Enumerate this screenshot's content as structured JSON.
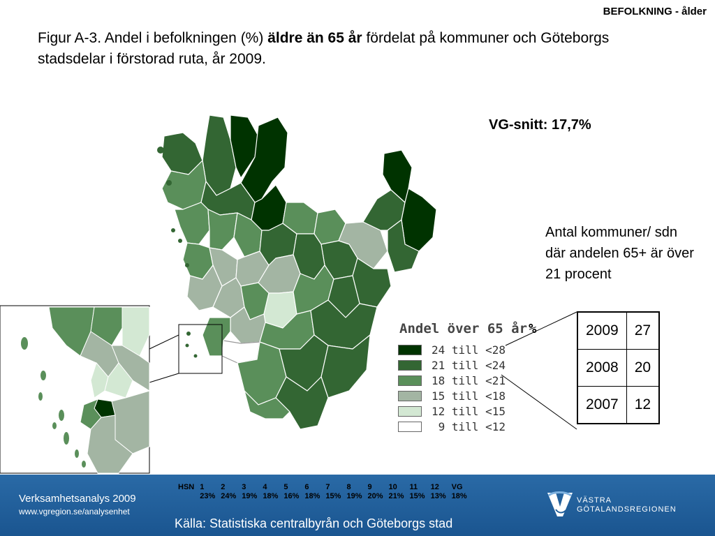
{
  "header": {
    "section_tag": "BEFOLKNING - ålder",
    "title_pre": "Figur A-3. Andel i befolkningen (%) ",
    "title_bold": "äldre än 65 år",
    "title_post": " fördelat på kommuner och Göteborgs stadsdelar i förstorad ruta, år 2009."
  },
  "vg_average": "VG-snitt: 17,7%",
  "note": "Antal kommuner/ sdn där andelen 65+ är över 21 procent",
  "legend": {
    "title": "Andel över 65 år",
    "unit": "%",
    "classes": [
      {
        "label": "24 till <28",
        "color": "#003300"
      },
      {
        "label": "21 till <24",
        "color": "#336633"
      },
      {
        "label": "18 till <21",
        "color": "#5a8f5a"
      },
      {
        "label": "15 till <18",
        "color": "#a3b5a3"
      },
      {
        "label": "12 till <15",
        "color": "#d3e8d3"
      },
      {
        "label": " 9 till <12",
        "color": "#ffffff"
      }
    ]
  },
  "count_table": [
    {
      "year": "2009",
      "count": "27"
    },
    {
      "year": "2008",
      "count": "20"
    },
    {
      "year": "2007",
      "count": "12"
    }
  ],
  "footer": {
    "org_line1": "Verksamhetsanalys 2009",
    "org_line2": "www.vgregion.se/analysenhet",
    "hsn_label": "HSN",
    "hsn_numbers": [
      "1",
      "2",
      "3",
      "4",
      "5",
      "6",
      "7",
      "8",
      "9",
      "10",
      "11",
      "12",
      "VG"
    ],
    "hsn_values": [
      "23%",
      "24%",
      "19%",
      "18%",
      "16%",
      "18%",
      "15%",
      "19%",
      "20%",
      "21%",
      "15%",
      "13%",
      "18%"
    ],
    "source": "Källa: Statistiska centralbyrån och Göteborgs stad",
    "logo_line1": "VÄSTRA",
    "logo_line2": "GÖTALANDSREGIONEN"
  }
}
